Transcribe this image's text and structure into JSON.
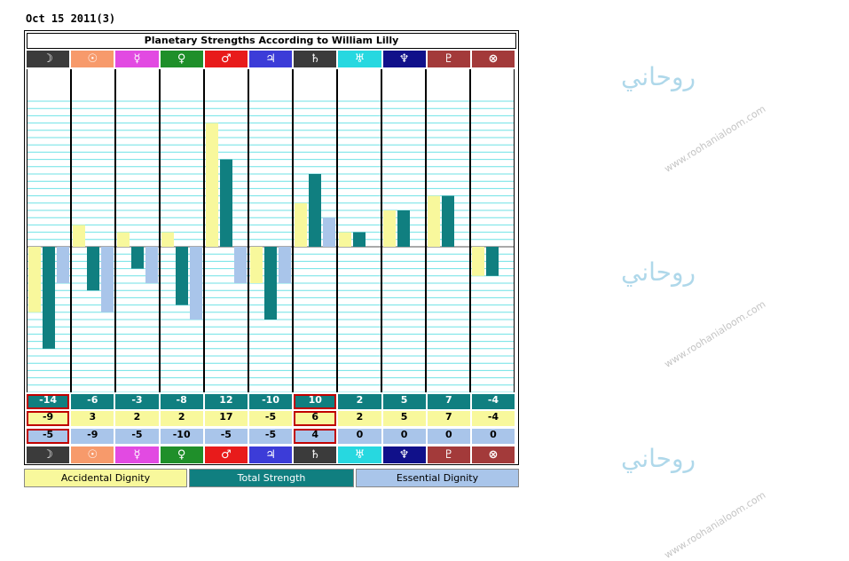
{
  "header": {
    "date_label": "Oct 15 2011(3)"
  },
  "chart_data": {
    "type": "bar",
    "title": "Planetary Strengths According to William Lilly",
    "categories": [
      "☽",
      "☉",
      "☿",
      "♀",
      "♂",
      "♃",
      "♄",
      "♅",
      "♆",
      "♇",
      "⊗"
    ],
    "series": [
      {
        "name": "Accidental Dignity",
        "values": [
          -9,
          3,
          2,
          2,
          17,
          -5,
          6,
          2,
          5,
          7,
          -4
        ]
      },
      {
        "name": "Total Strength",
        "values": [
          -14,
          -6,
          -3,
          -8,
          12,
          -10,
          10,
          2,
          5,
          7,
          -4
        ]
      },
      {
        "name": "Essential Dignity",
        "values": [
          -5,
          -9,
          -5,
          -10,
          -5,
          -5,
          4,
          0,
          0,
          0,
          0
        ]
      }
    ],
    "ylim": [
      -20,
      20
    ],
    "grid": true,
    "legend_position": "bottom",
    "column_colors": [
      "#3b3b3b",
      "#f79a6b",
      "#e24ae2",
      "#1f8f2a",
      "#e81b1b",
      "#3c3cd8",
      "#3b3b3b",
      "#27d8e0",
      "#10108a",
      "#a33a3a",
      "#a33a3a"
    ],
    "series_colors": {
      "accidental": "#f8f89c",
      "total": "#107f80",
      "essential": "#a9c5ea"
    }
  },
  "watermark": {
    "glyph": "روحاني",
    "site": "www.roohanialoom.com"
  }
}
